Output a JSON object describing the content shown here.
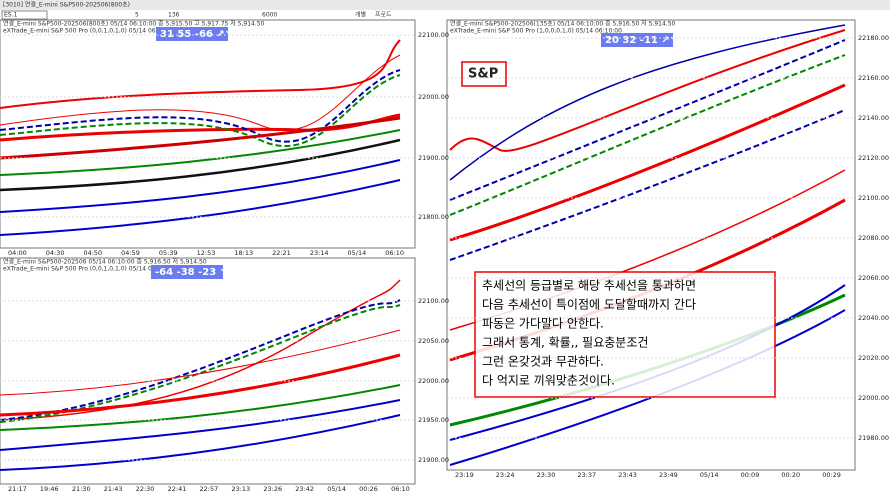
{
  "toolbar": {
    "title": "[3010] 연결_E-mini S&P500-202506(800초)",
    "symbol": "ES.1",
    "interval": "5",
    "count": "136",
    "amount": "6000",
    "buttons": [
      "개별",
      "프로드"
    ]
  },
  "panels": [
    {
      "header": "연결_E-mini S&P500-202506(800초) 05/14 06:10:00  종 5,915.50  고 5,917.75  저 5,914.50",
      "subheader": "eXTrade_E-mini S&P 500 Pro (0,0,1,0,1,0) 05/14 06:10:00",
      "indicator": "31  55  -66  ↗↘",
      "yticks": [
        "22100.00",
        "22000.00",
        "21900.00",
        "21800.00"
      ],
      "xticks": [
        "04:00",
        "04:30",
        "04:50",
        "04:59",
        "05:39",
        "12:53",
        "18:13",
        "22:21",
        "23:14",
        "05/14",
        "06:10"
      ]
    },
    {
      "header": "연결_E-mini S&P500-202506 05/14 06:10:00  종 5,916.50  저 5,914.50",
      "subheader": "eXTrade_E-mini S&P 500 Pro (0,0,1,0,1,0) 05/14 06:10:00",
      "indicator": "-64  -38  -23  ↘↘",
      "yticks": [
        "22100.00",
        "22050.00",
        "22000.00",
        "21950.00",
        "21900.00"
      ],
      "xticks": [
        "21:17",
        "19:46",
        "21:30",
        "21:43",
        "22:30",
        "22:41",
        "22:57",
        "23:13",
        "23:26",
        "23:42",
        "05/14",
        "00:26",
        "06:10"
      ]
    },
    {
      "header": "연결_E-mini S&P500-202506(135초) 05/14 06:10:00  종 5,916.50  저 5,914.50",
      "subheader": "eXTrade_E-mini S&P 500 Pro (1,0,0,0,1,0) 05/14 06:10:00",
      "indicator": "20  32  -11  ↗↘",
      "label": "S&P",
      "yticks": [
        "22180.00",
        "22160.00",
        "22140.00",
        "22120.00",
        "22100.00",
        "22080.00",
        "22060.00",
        "22040.00",
        "22020.00",
        "22000.00",
        "21980.00"
      ],
      "xticks": [
        "23:19",
        "23:24",
        "23:30",
        "23:37",
        "23:43",
        "23:49",
        "05/14",
        "00:09",
        "00:20",
        "00:29"
      ]
    }
  ],
  "note": {
    "lines": [
      "추세선의 등급별로 해당 추세선을 통과하면",
      "다음 추세선이 특이점에 도달할때까지 간다",
      "파동은 가다말다 안한다.",
      "그래서 통계, 확률,, 필요충분조건",
      "그런 온갖것과 무관하다.",
      "다 억지로 끼워맞춘것이다."
    ]
  }
}
